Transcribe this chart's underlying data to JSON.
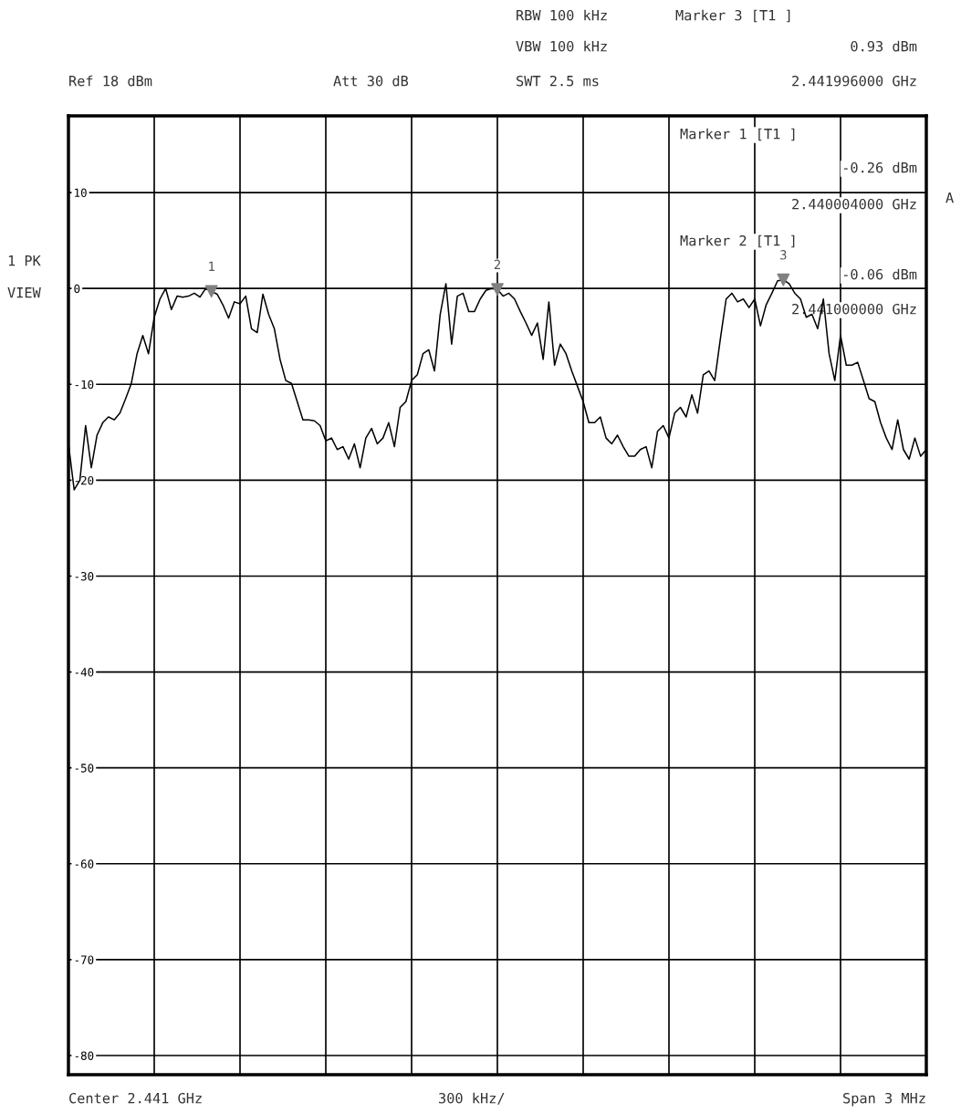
{
  "chart_data": {
    "type": "line",
    "categories": [
      null,
      null,
      null,
      null,
      null,
      null,
      null,
      null,
      null,
      null,
      null,
      null,
      null,
      null,
      null,
      null,
      null,
      null,
      null,
      null,
      null,
      null,
      null,
      null,
      null,
      null,
      null,
      null,
      null,
      null,
      null,
      null,
      null,
      null,
      null,
      null,
      null,
      null,
      null,
      null,
      null,
      null,
      null,
      null,
      null,
      null,
      null,
      null,
      null,
      null,
      null,
      null,
      null,
      null,
      null,
      null,
      null,
      null,
      null,
      null,
      null,
      null,
      null,
      null,
      null,
      null,
      null,
      null,
      null,
      null,
      null,
      null,
      null,
      null,
      null,
      null,
      null,
      null,
      null,
      null,
      null,
      null,
      null,
      null,
      null,
      null,
      null,
      null,
      null,
      null,
      null,
      null,
      null,
      null,
      null,
      null,
      null,
      null,
      null,
      null,
      null,
      null,
      null,
      null,
      null,
      null,
      null,
      null,
      null,
      null,
      null,
      null,
      null,
      null,
      null,
      null,
      null,
      null,
      null,
      null,
      null,
      null,
      null,
      null,
      null,
      null,
      null,
      null,
      null,
      null,
      null,
      null,
      null,
      null,
      null,
      null,
      null,
      null,
      null,
      null,
      null,
      null,
      null,
      null,
      null,
      null,
      null,
      null,
      null,
      null,
      null
    ],
    "series": [
      {
        "color": "#000000",
        "values": [
          -16.2,
          -21,
          -20,
          -14.3,
          -18.7,
          -15.3,
          -14,
          -13.4,
          -13.7,
          -13,
          -11.5,
          -9.9,
          -6.8,
          -4.9,
          -6.8,
          -3,
          -1.1,
          0,
          -2.2,
          -0.8,
          -0.9,
          -0.8,
          -0.5,
          -0.9,
          0,
          -0.3,
          -0.6,
          -1.7,
          -3.1,
          -1.4,
          -1.6,
          -0.8,
          -4.2,
          -4.6,
          -0.6,
          -2.7,
          -4.2,
          -7.4,
          -9.6,
          -9.9,
          -11.8,
          -13.7,
          -13.7,
          -13.8,
          -14.3,
          -15.9,
          -15.6,
          -16.8,
          -16.5,
          -17.8,
          -16.2,
          -18.7,
          -15.6,
          -14.6,
          -16.2,
          -15.6,
          -14,
          -16.5,
          -12.4,
          -11.8,
          -9.6,
          -9,
          -6.8,
          -6.4,
          -8.6,
          -2.7,
          0.5,
          -5.8,
          -0.8,
          -0.5,
          -2.4,
          -2.4,
          -1.1,
          -0.2,
          0,
          -0.1,
          -0.8,
          -0.5,
          -1.1,
          -2.4,
          -3.6,
          -4.9,
          -3.6,
          -7.4,
          -1.4,
          -8,
          -5.8,
          -6.8,
          -8.6,
          -10.2,
          -11.8,
          -14,
          -14,
          -13.4,
          -15.6,
          -16.2,
          -15.3,
          -16.5,
          -17.5,
          -17.5,
          -16.8,
          -16.5,
          -18.7,
          -14.9,
          -14.3,
          -15.6,
          -13,
          -12.4,
          -13.4,
          -11.1,
          -13,
          -9,
          -8.6,
          -9.6,
          -5.2,
          -1.1,
          -0.5,
          -1.4,
          -1.1,
          -2,
          -1.1,
          -3.9,
          -1.7,
          -0.5,
          0.8,
          0.9,
          0.5,
          -0.5,
          -1.1,
          -3,
          -2.7,
          -4.2,
          -1.1,
          -6.8,
          -9.6,
          -4.9,
          -8,
          -8,
          -7.7,
          -9.6,
          -11.5,
          -11.8,
          -14,
          -15.6,
          -16.8,
          -13.7,
          -16.8,
          -17.8,
          -15.6,
          -17.5,
          -16.8
        ]
      },
      {
        "type": "scatter",
        "marker": "triangle",
        "color": "#808080",
        "values": [
          null,
          null,
          null,
          null,
          null,
          null,
          null,
          null,
          null,
          null,
          null,
          null,
          null,
          null,
          null,
          null,
          null,
          null,
          null,
          null,
          null,
          null,
          null,
          null,
          null,
          -0.3,
          null,
          null,
          null,
          null,
          null,
          null,
          null,
          null,
          null,
          null,
          null,
          null,
          null,
          null,
          null,
          null,
          null,
          null,
          null,
          null,
          null,
          null,
          null,
          null,
          null,
          null,
          null,
          null,
          null,
          null,
          null,
          null,
          null,
          null,
          null,
          null,
          null,
          null,
          null,
          null,
          null,
          null,
          null,
          null,
          null,
          null,
          null,
          null,
          null,
          -0.1,
          null,
          null,
          null,
          null,
          null,
          null,
          null,
          null,
          null,
          null,
          null,
          null,
          null,
          null,
          null,
          null,
          null,
          null,
          null,
          null,
          null,
          null,
          null,
          null,
          null,
          null,
          null,
          null,
          null,
          null,
          null,
          null,
          null,
          null,
          null,
          null,
          null,
          null,
          null,
          null,
          null,
          null,
          null,
          null,
          null,
          null,
          null,
          null,
          null,
          0.9,
          null,
          null,
          null,
          null,
          null,
          null,
          null,
          null,
          null,
          null,
          null,
          null,
          null,
          null,
          null,
          null,
          null,
          null,
          null,
          null,
          null,
          null,
          null,
          null,
          null
        ]
      }
    ],
    "ylim": [
      -82,
      18
    ],
    "yticks": [
      10,
      0,
      -10,
      -20,
      -30,
      -40,
      -50,
      -60,
      -70,
      -80
    ],
    "grid": true,
    "tick_labels": "y",
    "annotations": [
      "RBW 100 kHz",
      "VBW 100 kHz",
      "SWT 2.5 ms",
      "Ref 18 dBm",
      "Att 30 dB",
      "Marker 3 [T1 ]",
      "0.93 dBm",
      "2.441996000 GHz",
      "Marker 1 [T1 ]",
      "-0.26 dBm",
      "2.440004000 GHz",
      "Marker 2 [T1 ]",
      "-0.06 dBm",
      "2.441000000 GHz",
      "1 PK",
      "VIEW",
      "A",
      "Center 2.441 GHz",
      "300 kHz/",
      "Span 3 MHz",
      "1",
      "2",
      "3"
    ]
  }
}
